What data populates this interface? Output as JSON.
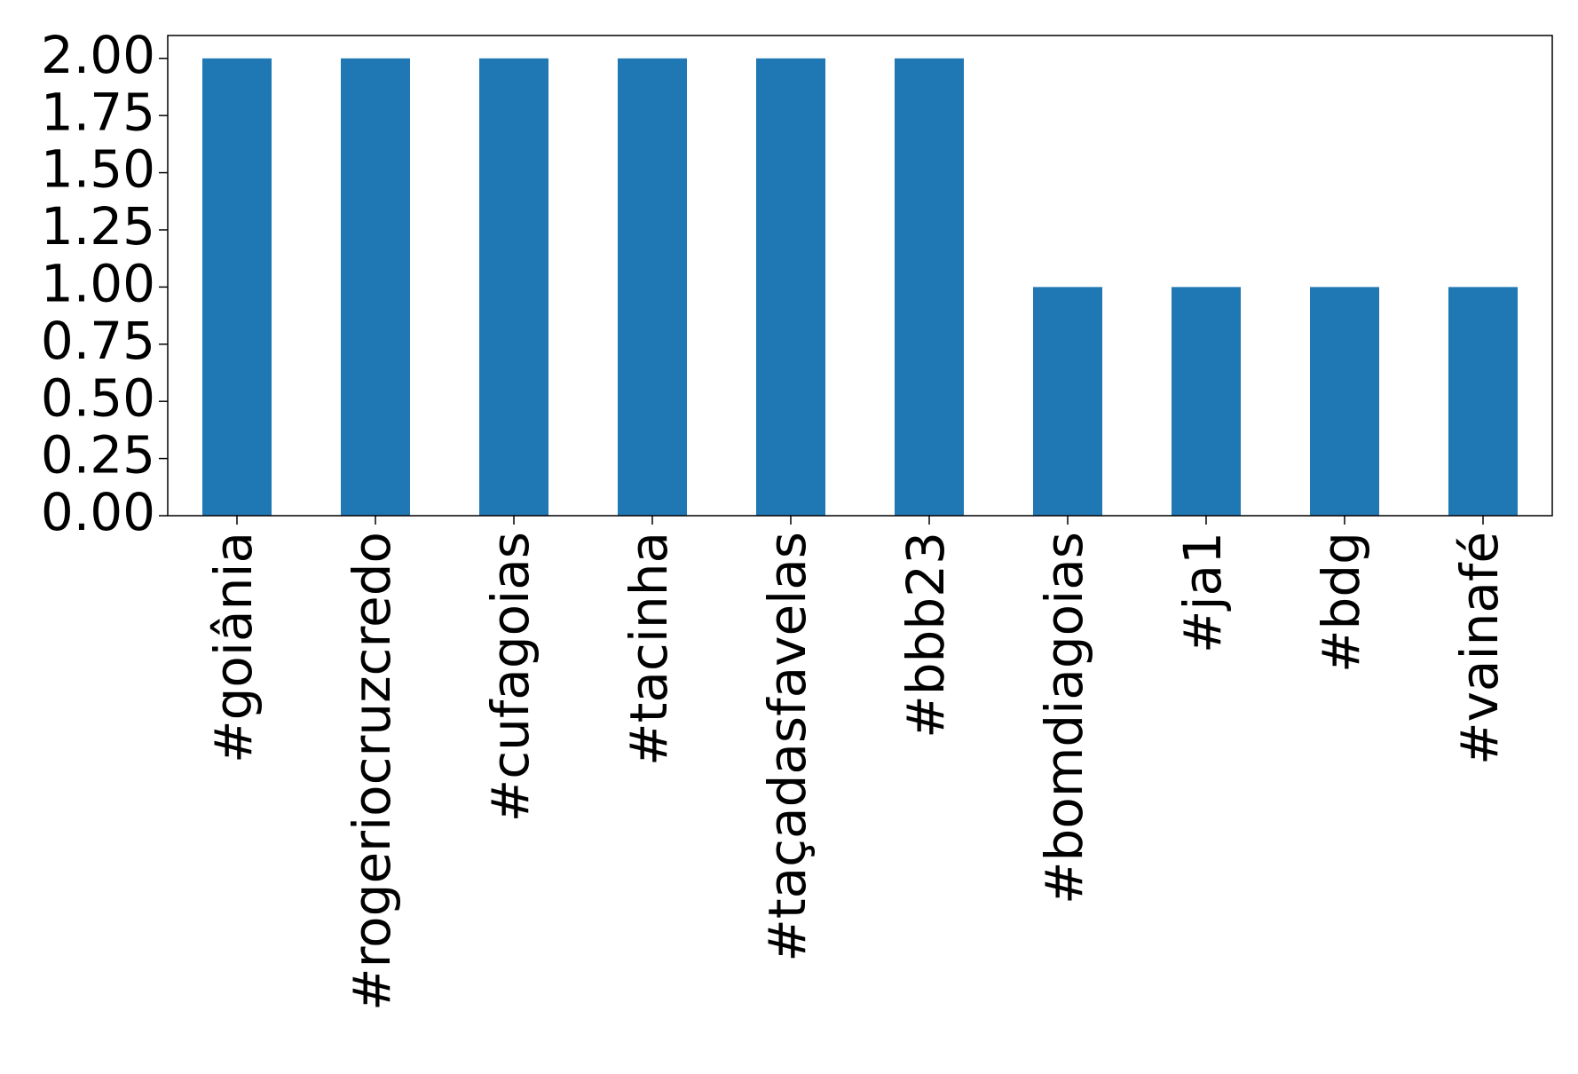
{
  "chart_data": {
    "type": "bar",
    "categories": [
      "#goiânia",
      "#rogeriocruzcredo",
      "#cufagoias",
      "#tacinha",
      "#taçadasfavelas",
      "#bbb23",
      "#bomdiagoias",
      "#ja1",
      "#bdg",
      "#vainafé"
    ],
    "values": [
      2,
      2,
      2,
      2,
      2,
      2,
      1,
      1,
      1,
      1
    ],
    "color": "#1f77b4",
    "ylim": [
      0,
      2.1
    ],
    "yticks": [
      {
        "value": 0,
        "label": "0.00"
      },
      {
        "value": 0.25,
        "label": "0.25"
      },
      {
        "value": 0.5,
        "label": "0.50"
      },
      {
        "value": 0.75,
        "label": "0.75"
      },
      {
        "value": 1,
        "label": "1.00"
      },
      {
        "value": 1.25,
        "label": "1.25"
      },
      {
        "value": 1.5,
        "label": "1.50"
      },
      {
        "value": 1.75,
        "label": "1.75"
      },
      {
        "value": 2,
        "label": "2.00"
      }
    ],
    "grid": false
  }
}
